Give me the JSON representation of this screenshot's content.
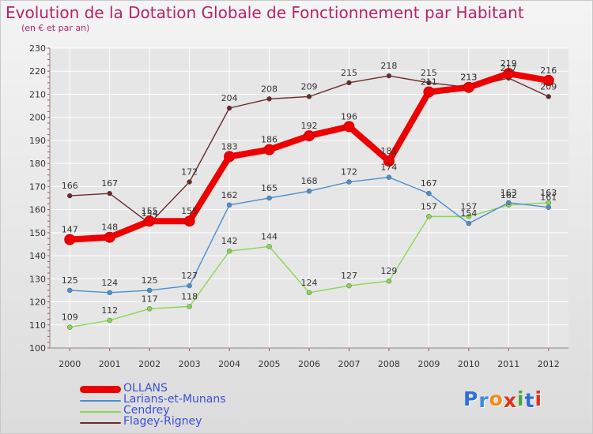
{
  "title": "Evolution de la Dotation Globale de Fonctionnement par Habitant",
  "subtitle": "(en € et par an)",
  "logo": {
    "text": "Proxiti",
    "letters": [
      "P",
      "r",
      "o",
      "x",
      "i",
      "t",
      "i"
    ],
    "colors": [
      "#2f6fd6",
      "#3b8be0",
      "#f08a1c",
      "#e0301e",
      "#4aa83a",
      "#2f6fd6",
      "#e0301e"
    ]
  },
  "colors": {
    "title": "#b5246a",
    "grid": "#ffffff",
    "axis_text": "#333333",
    "legend_text": "#3a4fd8"
  },
  "chart_data": {
    "type": "line",
    "title": "Evolution de la Dotation Globale de Fonctionnement par Habitant",
    "subtitle": "(en € et par an)",
    "xlabel": "",
    "ylabel": "",
    "x": [
      2000,
      2001,
      2002,
      2003,
      2004,
      2005,
      2006,
      2007,
      2008,
      2009,
      2010,
      2011,
      2012
    ],
    "ylim": [
      100,
      230
    ],
    "yticks": [
      100,
      110,
      120,
      130,
      140,
      150,
      160,
      170,
      180,
      190,
      200,
      210,
      220,
      230
    ],
    "grid": true,
    "legend_position": "bottom-left",
    "series": [
      {
        "name": "OLLANS",
        "color": "#ee0000",
        "values": [
          147,
          148,
          155,
          155,
          183,
          186,
          192,
          196,
          181,
          211,
          213,
          219,
          216
        ]
      },
      {
        "name": "Larians-et-Munans",
        "color": "#4b8fd0",
        "values": [
          125,
          124,
          125,
          127,
          162,
          165,
          168,
          172,
          174,
          167,
          154,
          163,
          161
        ]
      },
      {
        "name": "Cendrey",
        "color": "#88d850",
        "values": [
          109,
          112,
          117,
          118,
          142,
          144,
          124,
          127,
          129,
          157,
          157,
          162,
          163
        ]
      },
      {
        "name": "Flagey-Rigney",
        "color": "#6b2a2a",
        "values": [
          166,
          167,
          154,
          172,
          204,
          208,
          209,
          215,
          218,
          215,
          213,
          217,
          209
        ]
      }
    ]
  }
}
